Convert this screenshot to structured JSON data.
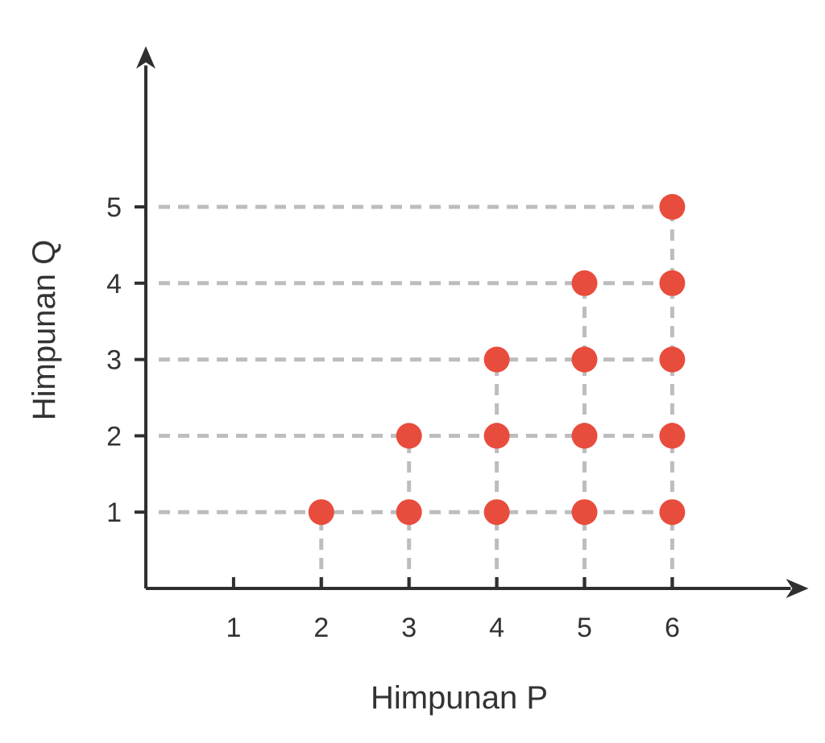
{
  "chart_data": {
    "type": "scatter",
    "xlabel": "Himpunan P",
    "ylabel": "Himpunan Q",
    "x_ticks": [
      "1",
      "2",
      "3",
      "4",
      "5",
      "6"
    ],
    "y_ticks": [
      "1",
      "2",
      "3",
      "4",
      "5"
    ],
    "xlim": [
      0,
      6.8
    ],
    "ylim": [
      0,
      6.8
    ],
    "grid": "dashed guide lines from each point to both axes",
    "points": [
      {
        "x": 2,
        "y": 1
      },
      {
        "x": 3,
        "y": 1
      },
      {
        "x": 3,
        "y": 2
      },
      {
        "x": 4,
        "y": 1
      },
      {
        "x": 4,
        "y": 2
      },
      {
        "x": 4,
        "y": 3
      },
      {
        "x": 5,
        "y": 1
      },
      {
        "x": 5,
        "y": 2
      },
      {
        "x": 5,
        "y": 3
      },
      {
        "x": 5,
        "y": 4
      },
      {
        "x": 6,
        "y": 1
      },
      {
        "x": 6,
        "y": 2
      },
      {
        "x": 6,
        "y": 3
      },
      {
        "x": 6,
        "y": 4
      },
      {
        "x": 6,
        "y": 5
      }
    ],
    "colors": {
      "point": "#E84C3D",
      "axis": "#2F2F2F",
      "guide": "#BDBDBD",
      "text": "#333333"
    }
  }
}
